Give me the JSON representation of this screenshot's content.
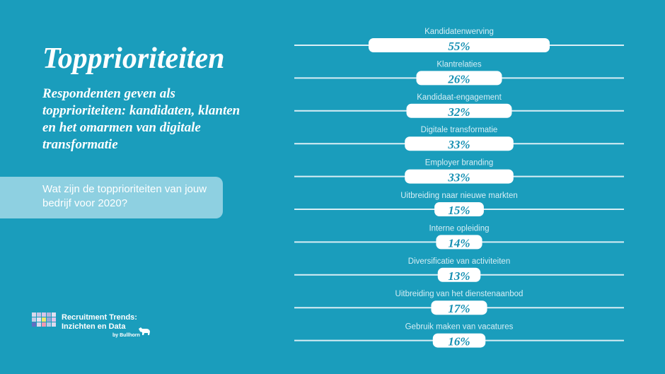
{
  "page": {
    "title": "Topprioriteiten",
    "subtitle": "Respondenten geven als topprioriteiten: kandidaten, klanten en het omarmen van digitale transformatie",
    "question": "Wat zijn de topprioriteiten van jouw bedrijf voor 2020?"
  },
  "brand": {
    "name": "Recruitment Trends: Inzichten en Data",
    "byline": "by Bullhorn",
    "logo_icon": "bull-icon",
    "grid_colors": [
      "#d8d8ec",
      "#c9c6e6",
      "#d6c4e8",
      "#b7b3dc",
      "#e1dff0",
      "#c9cce6",
      "#e5e3f3",
      "#f4e56c",
      "#9aa8dc",
      "#e2c4ea",
      "#5f6fc2",
      "#dad8ee",
      "#ee9ab4",
      "#b8cce8",
      "#ddd9ee"
    ]
  },
  "colors": {
    "background": "#1a9dbc",
    "bar": "#ffffff",
    "track": "#d9eef5",
    "label": "#d6eef5",
    "value": "#1690b3"
  },
  "chart_data": {
    "type": "bar",
    "orientation": "horizontal",
    "value_suffix": "%",
    "xlim": [
      0,
      100
    ],
    "categories": [
      "Kandidatenwerving",
      "Klantrelaties",
      "Kandidaat-engagement",
      "Digitale transformatie",
      "Employer branding",
      "Uitbreiding naar nieuwe markten",
      "Interne opleiding",
      "Diversificatie van activiteiten",
      "Uitbreiding van het dienstenaanbod",
      "Gebruik maken van vacatures"
    ],
    "values": [
      55,
      26,
      32,
      33,
      33,
      15,
      14,
      13,
      17,
      16
    ],
    "labels": [
      "55%",
      "26%",
      "32%",
      "33%",
      "33%",
      "15%",
      "14%",
      "13%",
      "17%",
      "16%"
    ]
  }
}
